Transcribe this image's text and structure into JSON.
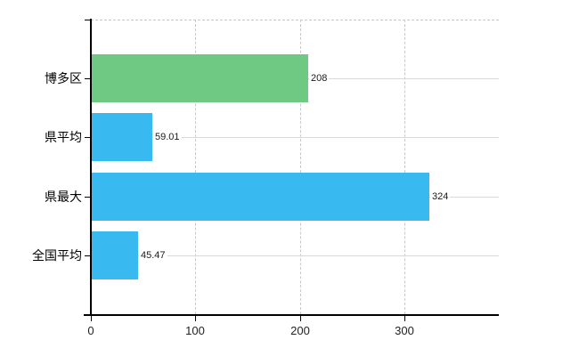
{
  "chart_data": {
    "type": "bar",
    "orientation": "horizontal",
    "title": "",
    "xlabel": "",
    "ylabel": "",
    "categories": [
      "博多区",
      "県平均",
      "県最大",
      "全国平均"
    ],
    "values": [
      208,
      59.01,
      324,
      45.47
    ],
    "value_labels": [
      "208",
      "59.01",
      "324",
      "45.47"
    ],
    "bar_colors": [
      "#6FC983",
      "#38BAF1",
      "#38BAF1",
      "#38BAF1"
    ],
    "x_ticks": [
      0,
      100,
      200,
      300
    ],
    "x_tick_labels": [
      "0",
      "100",
      "200",
      "300"
    ],
    "xlim": [
      0,
      390
    ],
    "grid": true,
    "legend_position": "none",
    "colors": {
      "axis": "#000000",
      "vertical_grid": "#c9c9c9",
      "category_line": "#d9d9d9",
      "category_text": "#000000",
      "tick_text": "#222222",
      "value_text": "#1a1a1a",
      "background": "#ffffff"
    }
  }
}
